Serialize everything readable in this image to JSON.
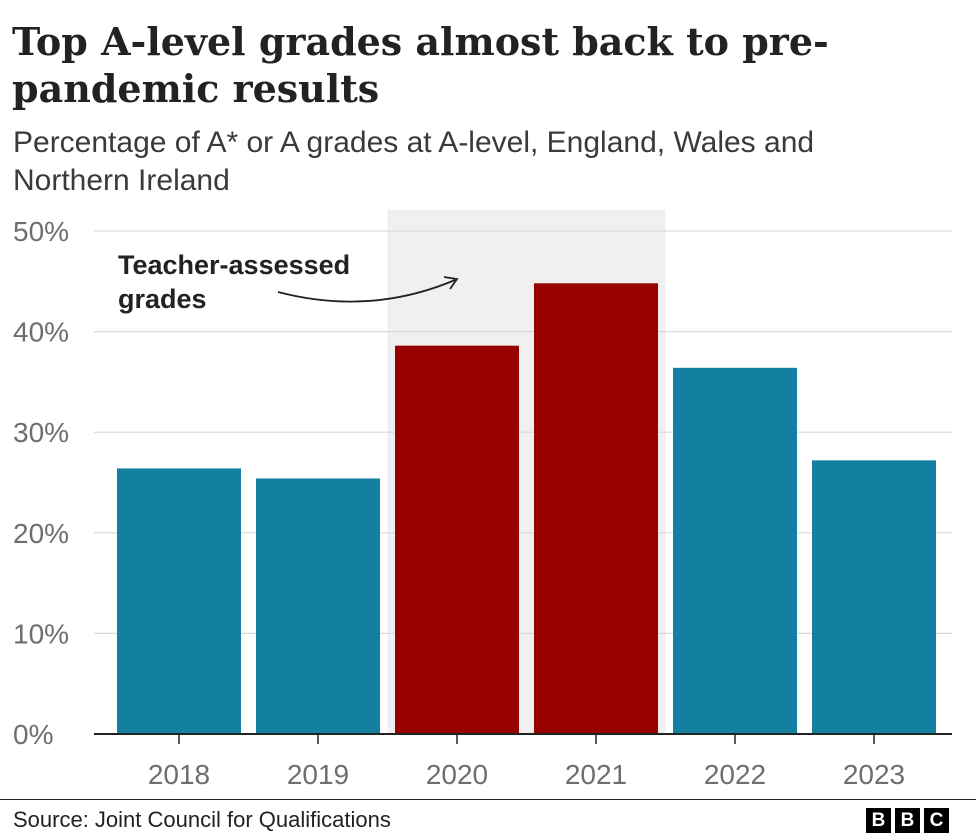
{
  "header": {
    "title": "Top A-level grades almost back to pre-pandemic results",
    "subtitle": "Percentage of A* or A grades at A-level, England, Wales and Northern Ireland"
  },
  "footer": {
    "source": "Source: Joint Council for Qualifications",
    "logo_letters": [
      "B",
      "B",
      "C"
    ]
  },
  "chart_data": {
    "type": "bar",
    "title": "Top A-level grades almost back to pre-pandemic results",
    "subtitle": "Percentage of A* or A grades at A-level, England, Wales and Northern Ireland",
    "xlabel": "",
    "ylabel": "",
    "categories": [
      "2018",
      "2019",
      "2020",
      "2021",
      "2022",
      "2023"
    ],
    "values": [
      26.4,
      25.4,
      38.6,
      44.8,
      36.4,
      27.2
    ],
    "highlighted": [
      false,
      false,
      true,
      true,
      false,
      false
    ],
    "ylim": [
      0,
      50
    ],
    "yticks": [
      0,
      10,
      20,
      30,
      40,
      50
    ],
    "ytick_labels": [
      "0%",
      "10%",
      "20%",
      "30%",
      "40%",
      "50%"
    ],
    "grid": true,
    "colors": {
      "normal": "#1380a1",
      "highlight": "#990000",
      "shade": "#f0f0f0",
      "grid": "#d9d9d9",
      "axis": "#222222",
      "tick_text": "#6e6e6e"
    },
    "annotation": {
      "lines": [
        "Teacher-assessed",
        "grades"
      ],
      "shaded_categories": [
        "2020",
        "2021"
      ]
    }
  }
}
